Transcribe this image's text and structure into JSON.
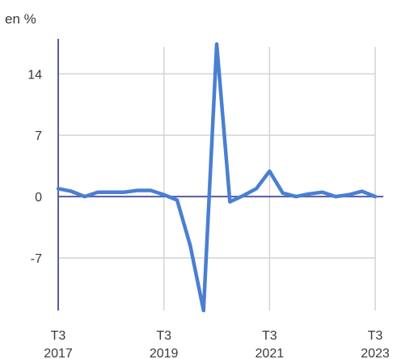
{
  "chart_data": {
    "type": "line",
    "ylabel": "en %",
    "ylim": [
      -13,
      18
    ],
    "y_ticks": [
      14,
      7,
      0,
      -7
    ],
    "y_tick_labels": [
      "14",
      "7",
      "0",
      "-7"
    ],
    "x_ticks": [
      {
        "index": 0,
        "label_top": "T3",
        "label_bottom": "2017"
      },
      {
        "index": 8,
        "label_top": "T3",
        "label_bottom": "2019"
      },
      {
        "index": 16,
        "label_top": "T3",
        "label_bottom": "2021"
      },
      {
        "index": 24,
        "label_top": "T3",
        "label_bottom": "2023"
      }
    ],
    "series": [
      {
        "color": "#4a7fd1",
        "values": [
          0.9,
          0.6,
          0.0,
          0.5,
          0.5,
          0.5,
          0.7,
          0.7,
          0.2,
          -0.4,
          -5.6,
          -13.0,
          17.4,
          -0.6,
          0.1,
          0.9,
          2.9,
          0.4,
          0.0,
          0.3,
          0.5,
          0.0,
          0.2,
          0.6,
          0.0
        ]
      }
    ],
    "grid": true,
    "axis_color": "#5a5aa8"
  }
}
